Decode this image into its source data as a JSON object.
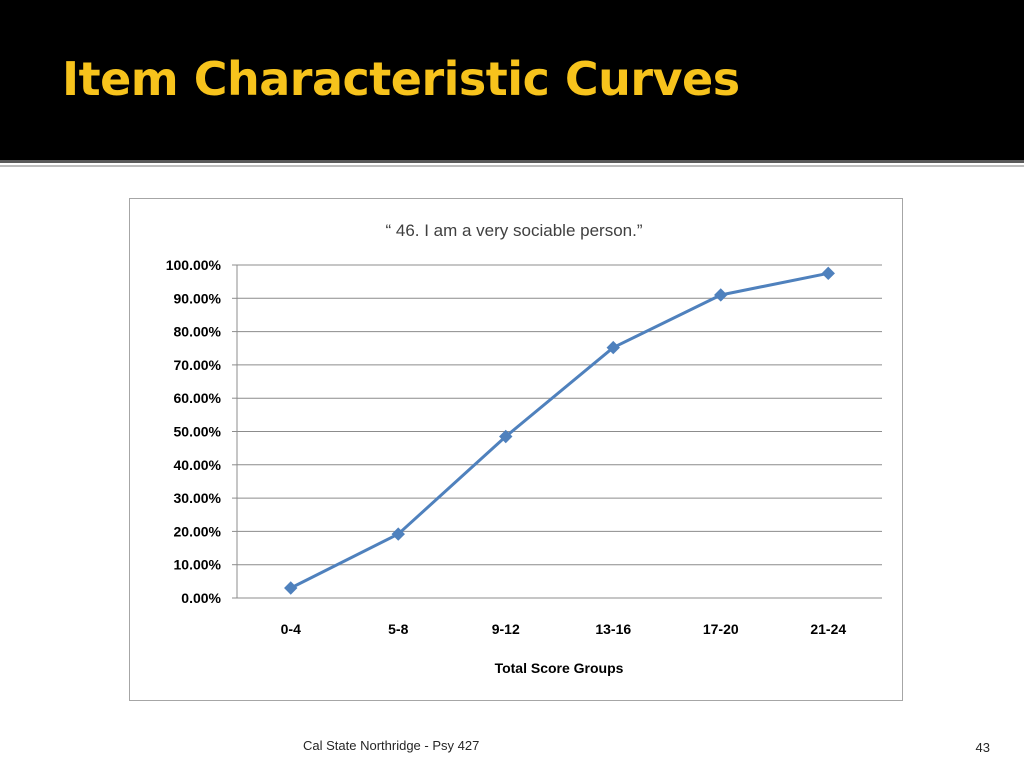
{
  "slide": {
    "title": "Item Characteristic Curves",
    "footer": "Cal State Northridge - Psy 427",
    "page_number": "43",
    "title_color": "#f7c31c",
    "header_background": "#000000"
  },
  "chart_data": {
    "type": "line",
    "title": "“ 46. I am a very sociable person.”",
    "xlabel": "Total Score Groups",
    "ylabel": "",
    "categories": [
      "0-4",
      "5-8",
      "9-12",
      "13-16",
      "17-20",
      "21-24"
    ],
    "series": [
      {
        "values": [
          3.0,
          19.2,
          48.5,
          75.2,
          91.0,
          97.5
        ],
        "color": "#4f81bd",
        "marker": "diamond"
      }
    ],
    "ylim": [
      0,
      100
    ],
    "y_ticks": [
      "0.00%",
      "10.00%",
      "20.00%",
      "30.00%",
      "40.00%",
      "50.00%",
      "60.00%",
      "70.00%",
      "80.00%",
      "90.00%",
      "100.00%"
    ],
    "grid": true,
    "legend": "none"
  }
}
